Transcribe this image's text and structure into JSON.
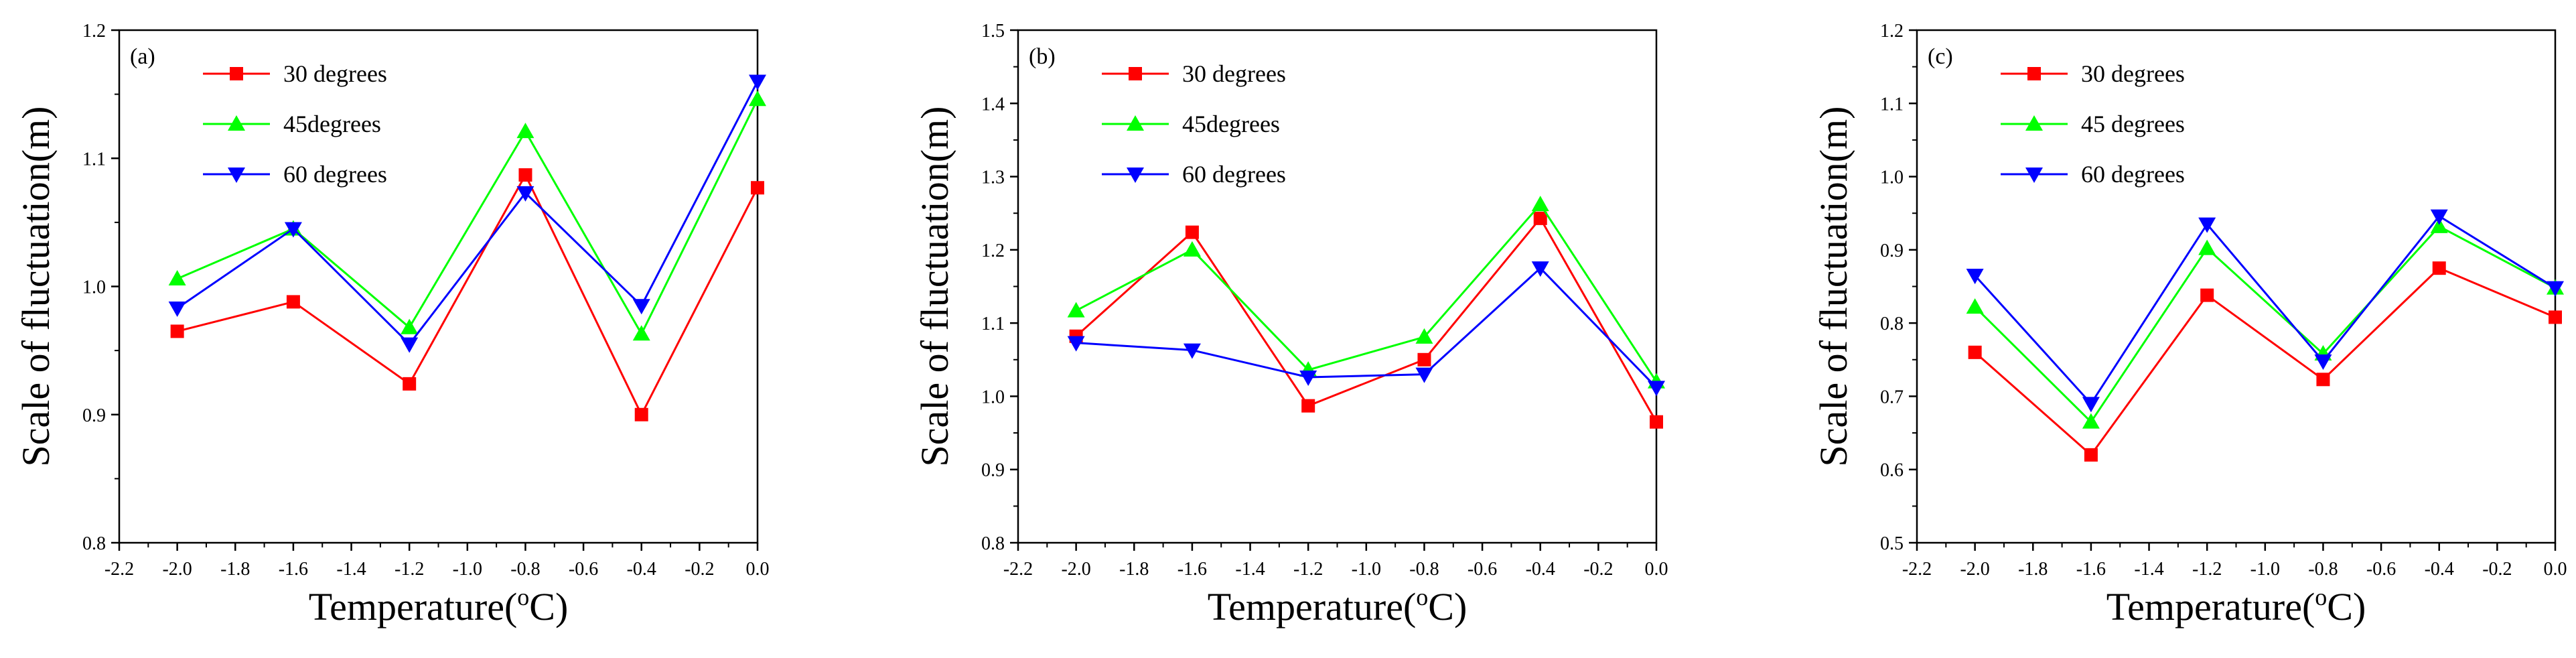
{
  "chart_data": [
    {
      "type": "line",
      "panel_label": "(a)",
      "xlabel": "Temperature(",
      "xlabel_sup": "o",
      "xlabel_tail": "C)",
      "ylabel": "Scale of fluctuation(m)",
      "xlim": [
        -2.2,
        0.0
      ],
      "ylim": [
        0.8,
        1.2
      ],
      "xticks": [
        -2.2,
        -2.0,
        -1.8,
        -1.6,
        -1.4,
        -1.2,
        -1.0,
        -0.8,
        -0.6,
        -0.4,
        -0.2,
        0.0
      ],
      "xtick_labels": [
        "-2.2",
        "-2.0",
        "-1.8",
        "-1.6",
        "-1.4",
        "-1.2",
        "-1.0",
        "-0.8",
        "-0.6",
        "-0.4",
        "-0.2",
        "0.0"
      ],
      "yticks": [
        0.8,
        0.9,
        1.0,
        1.1,
        1.2
      ],
      "ytick_labels": [
        "0.8",
        "0.9",
        "1.0",
        "1.1",
        "1.2"
      ],
      "x": [
        -2.0,
        -1.6,
        -1.2,
        -0.8,
        -0.4,
        0.0
      ],
      "series": [
        {
          "name": "30 degrees",
          "color": "#ff0000",
          "marker": "square",
          "values": [
            0.965,
            0.988,
            0.924,
            1.087,
            0.9,
            1.077
          ]
        },
        {
          "name": "45degrees",
          "color": "#00ff00",
          "marker": "triangle-up",
          "values": [
            1.006,
            1.045,
            0.968,
            1.121,
            0.963,
            1.146
          ]
        },
        {
          "name": "60 degrees",
          "color": "#0000ff",
          "marker": "triangle-down",
          "values": [
            0.983,
            1.045,
            0.955,
            1.073,
            0.985,
            1.16
          ]
        }
      ]
    },
    {
      "type": "line",
      "panel_label": "(b)",
      "xlabel": "Temperature(",
      "xlabel_sup": "o",
      "xlabel_tail": "C)",
      "ylabel": "Scale of fluctuation(m)",
      "xlim": [
        -2.2,
        0.0
      ],
      "ylim": [
        0.8,
        1.5
      ],
      "xticks": [
        -2.2,
        -2.0,
        -1.8,
        -1.6,
        -1.4,
        -1.2,
        -1.0,
        -0.8,
        -0.6,
        -0.4,
        -0.2,
        0.0
      ],
      "xtick_labels": [
        "-2.2",
        "-2.0",
        "-1.8",
        "-1.6",
        "-1.4",
        "-1.2",
        "-1.0",
        "-0.8",
        "-0.6",
        "-0.4",
        "-0.2",
        "0.0"
      ],
      "yticks": [
        0.8,
        0.9,
        1.0,
        1.1,
        1.2,
        1.3,
        1.4,
        1.5
      ],
      "ytick_labels": [
        "0.8",
        "0.9",
        "1.0",
        "1.1",
        "1.2",
        "1.3",
        "1.4",
        "1.5"
      ],
      "x": [
        -2.0,
        -1.6,
        -1.2,
        -0.8,
        -0.4,
        0.0
      ],
      "series": [
        {
          "name": "30 degrees",
          "color": "#ff0000",
          "marker": "square",
          "values": [
            1.082,
            1.224,
            0.987,
            1.05,
            1.243,
            0.965
          ]
        },
        {
          "name": "45degrees",
          "color": "#00ff00",
          "marker": "triangle-up",
          "values": [
            1.117,
            1.2,
            1.036,
            1.081,
            1.262,
            1.02
          ]
        },
        {
          "name": "60 degrees",
          "color": "#0000ff",
          "marker": "triangle-down",
          "values": [
            1.073,
            1.063,
            1.026,
            1.03,
            1.175,
            1.012
          ]
        }
      ]
    },
    {
      "type": "line",
      "panel_label": "(c)",
      "xlabel": "Temperature(",
      "xlabel_sup": "o",
      "xlabel_tail": "C)",
      "ylabel": "Scale of fluctuation(m)",
      "xlim": [
        -2.2,
        0.0
      ],
      "ylim": [
        0.5,
        1.2
      ],
      "xticks": [
        -2.2,
        -2.0,
        -1.8,
        -1.6,
        -1.4,
        -1.2,
        -1.0,
        -0.8,
        -0.6,
        -0.4,
        -0.2,
        0.0
      ],
      "xtick_labels": [
        "-2.2",
        "-2.0",
        "-1.8",
        "-1.6",
        "-1.4",
        "-1.2",
        "-1.0",
        "-0.8",
        "-0.6",
        "-0.4",
        "-0.2",
        "0.0"
      ],
      "yticks": [
        0.5,
        0.6,
        0.7,
        0.8,
        0.9,
        1.0,
        1.1,
        1.2
      ],
      "ytick_labels": [
        "0.5",
        "0.6",
        "0.7",
        "0.8",
        "0.9",
        "1.0",
        "1.1",
        "1.2"
      ],
      "x": [
        -2.0,
        -1.6,
        -1.2,
        -0.8,
        -0.4,
        0.0
      ],
      "series": [
        {
          "name": "30 degrees",
          "color": "#ff0000",
          "marker": "square",
          "values": [
            0.76,
            0.62,
            0.838,
            0.723,
            0.875,
            0.808
          ]
        },
        {
          "name": "45 degrees",
          "color": "#00ff00",
          "marker": "triangle-up",
          "values": [
            0.822,
            0.665,
            0.902,
            0.758,
            0.932,
            0.848
          ]
        },
        {
          "name": "60 degrees",
          "color": "#0000ff",
          "marker": "triangle-down",
          "values": [
            0.865,
            0.69,
            0.935,
            0.748,
            0.946,
            0.848
          ]
        }
      ]
    }
  ]
}
